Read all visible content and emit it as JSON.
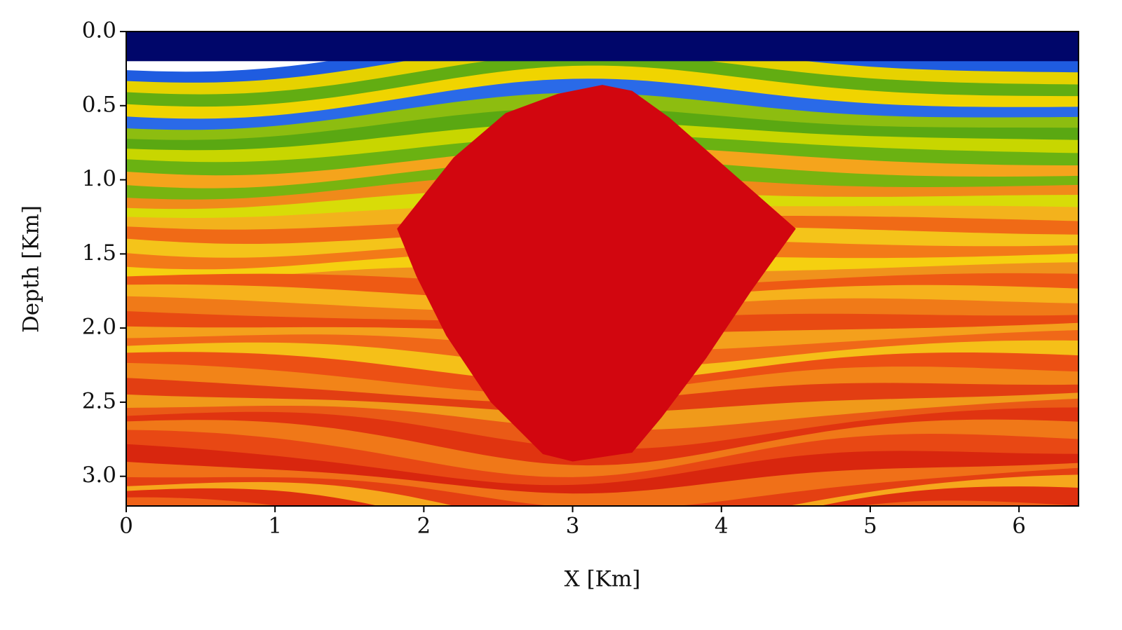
{
  "chart_data": {
    "type": "image",
    "xlabel": "X [Km]",
    "ylabel": "Depth [Km]",
    "xlim": [
      0,
      6.4
    ],
    "ylim": [
      3.2,
      0
    ],
    "xticks": [
      0,
      1,
      2,
      3,
      4,
      5,
      6
    ],
    "yticks": [
      {
        "value": 0,
        "label": "0.0"
      },
      0.5,
      {
        "value": 1,
        "label": "1.0"
      },
      1.5,
      {
        "value": 2,
        "label": "2.0"
      },
      2.5,
      {
        "value": 3,
        "label": "3.0"
      }
    ]
  }
}
